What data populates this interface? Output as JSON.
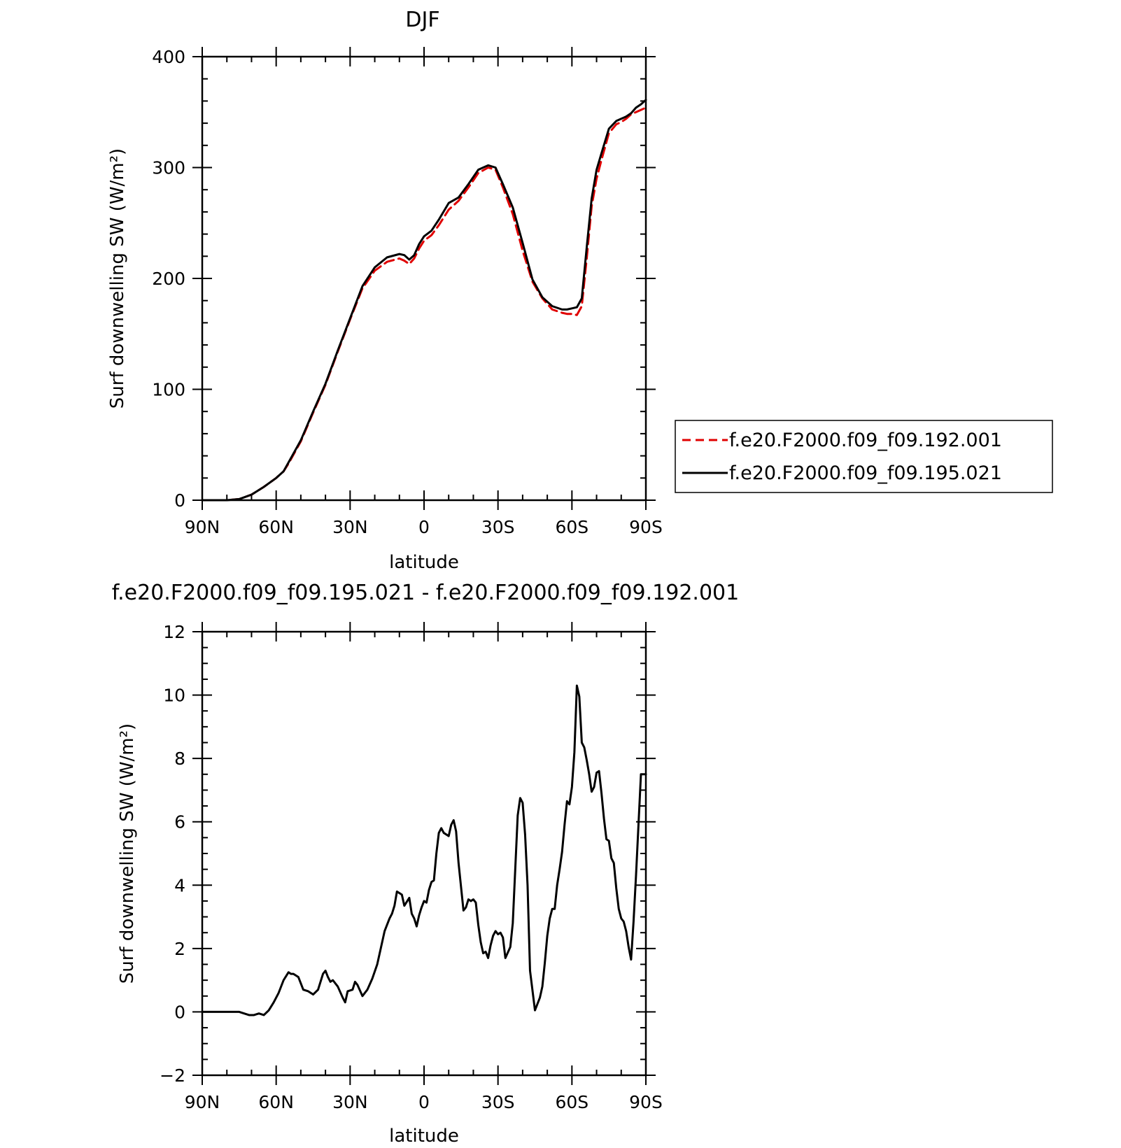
{
  "chart_data": [
    {
      "type": "line",
      "title": "DJF",
      "xlabel": "latitude",
      "ylabel": "Surf downwelling SW (W/m²)",
      "ylim": [
        0,
        400
      ],
      "yticks": [
        0,
        100,
        200,
        300,
        400
      ],
      "xlim": [
        90,
        -90
      ],
      "xticks": [
        {
          "value": 90,
          "label": "90N"
        },
        {
          "value": 60,
          "label": "60N"
        },
        {
          "value": 30,
          "label": "30N"
        },
        {
          "value": 0,
          "label": "0"
        },
        {
          "value": -30,
          "label": "30S"
        },
        {
          "value": -60,
          "label": "60S"
        },
        {
          "value": -90,
          "label": "90S"
        }
      ],
      "grid": false,
      "legend_position": "right",
      "series": [
        {
          "name": "f.e20.F2000.f09_f09.192.001",
          "color": "#e00000",
          "style": "dashed",
          "x": [
            90,
            80,
            75,
            70,
            65,
            60,
            57,
            55,
            50,
            45,
            40,
            35,
            30,
            25,
            20,
            15,
            10,
            8,
            6,
            4,
            2,
            0,
            -3,
            -6,
            -10,
            -14,
            -18,
            -22,
            -26,
            -29,
            -32,
            -36,
            -40,
            -44,
            -48,
            -52,
            -56,
            -58,
            -60,
            -62,
            -64,
            -66,
            -68,
            -70,
            -72,
            -75,
            -78,
            -80,
            -82,
            -84,
            -86,
            -88,
            -90
          ],
          "y": [
            0,
            0,
            1,
            5,
            12,
            20,
            26,
            33,
            53,
            79,
            104,
            134,
            163,
            191,
            207,
            215,
            218,
            216,
            213,
            218,
            227,
            234,
            239,
            248,
            262,
            270,
            282,
            295,
            300,
            298,
            282,
            258,
            225,
            197,
            182,
            172,
            169,
            168,
            168,
            167,
            175,
            218,
            265,
            290,
            307,
            331,
            339,
            341,
            344,
            348,
            350,
            352,
            354
          ]
        },
        {
          "name": "f.e20.F2000.f09_f09.195.021",
          "color": "#000000",
          "style": "solid",
          "x": [
            90,
            80,
            75,
            70,
            65,
            60,
            57,
            55,
            50,
            45,
            40,
            35,
            30,
            25,
            20,
            15,
            10,
            8,
            6,
            4,
            2,
            0,
            -3,
            -6,
            -10,
            -14,
            -18,
            -22,
            -26,
            -29,
            -32,
            -36,
            -40,
            -44,
            -48,
            -52,
            -56,
            -58,
            -60,
            -62,
            -64,
            -66,
            -68,
            -70,
            -72,
            -75,
            -78,
            -80,
            -82,
            -84,
            -86,
            -88,
            -90
          ],
          "y": [
            0,
            0,
            1,
            5,
            12,
            20,
            26,
            34,
            54,
            80,
            105,
            135,
            164,
            193,
            210,
            219,
            222,
            221,
            217,
            221,
            231,
            238,
            243,
            253,
            268,
            273,
            285,
            298,
            302,
            300,
            285,
            264,
            232,
            199,
            183,
            175,
            172,
            172,
            173,
            174,
            182,
            228,
            272,
            298,
            313,
            335,
            342,
            344,
            346,
            349,
            354,
            357,
            361
          ]
        }
      ]
    },
    {
      "type": "line",
      "title": "f.e20.F2000.f09_f09.195.021 - f.e20.F2000.f09_f09.192.001",
      "xlabel": "latitude",
      "ylabel": "Surf downwelling SW (W/m²)",
      "ylim": [
        -2,
        12
      ],
      "yticks": [
        -2,
        0,
        2,
        4,
        6,
        8,
        10,
        12
      ],
      "xlim": [
        90,
        -90
      ],
      "xticks": [
        {
          "value": 90,
          "label": "90N"
        },
        {
          "value": 60,
          "label": "60N"
        },
        {
          "value": 30,
          "label": "30N"
        },
        {
          "value": 0,
          "label": "0"
        },
        {
          "value": -30,
          "label": "30S"
        },
        {
          "value": -60,
          "label": "60S"
        },
        {
          "value": -90,
          "label": "90S"
        }
      ],
      "grid": false,
      "series": [
        {
          "color": "#000000",
          "style": "solid",
          "x": [
            90,
            75,
            73,
            71,
            69,
            67,
            65,
            63,
            61,
            59,
            57,
            55,
            54,
            53,
            51,
            49,
            47,
            45,
            43,
            41,
            40,
            39,
            38,
            37,
            35,
            33,
            32,
            31,
            29,
            28,
            27,
            25,
            23,
            21,
            19,
            17,
            16,
            14,
            13,
            12,
            11,
            10,
            9,
            8,
            6,
            5,
            4,
            3,
            2,
            1,
            0,
            -1,
            -2,
            -3,
            -4,
            -5,
            -6,
            -7,
            -8,
            -10,
            -11,
            -12,
            -13,
            -14,
            -16,
            -17,
            -18,
            -19,
            -20,
            -21,
            -22,
            -23,
            -24,
            -25,
            -26,
            -27,
            -28,
            -29,
            -30,
            -31,
            -32,
            -33,
            -35,
            -36,
            -37,
            -38,
            -39,
            -40,
            -41,
            -42,
            -43,
            -45,
            -46,
            -47,
            -48,
            -49,
            -50,
            -51,
            -52,
            -53,
            -54,
            -55,
            -56,
            -57,
            -58,
            -59,
            -60,
            -61,
            -62,
            -63,
            -64,
            -65,
            -66,
            -67,
            -68,
            -69,
            -70,
            -71,
            -72,
            -73,
            -74,
            -75,
            -76,
            -77,
            -78,
            -79,
            -80,
            -81,
            -82,
            -83,
            -84,
            -85,
            -86,
            -87,
            -88,
            -89,
            -90
          ],
          "y": [
            0,
            0,
            -0.05,
            -0.1,
            -0.1,
            -0.05,
            -0.1,
            0.05,
            0.3,
            0.6,
            1.0,
            1.25,
            1.2,
            1.2,
            1.1,
            0.7,
            0.65,
            0.55,
            0.7,
            1.2,
            1.3,
            1.1,
            0.95,
            1.0,
            0.8,
            0.45,
            0.3,
            0.65,
            0.7,
            0.95,
            0.85,
            0.5,
            0.7,
            1.05,
            1.5,
            2.2,
            2.55,
            2.95,
            3.1,
            3.35,
            3.8,
            3.75,
            3.7,
            3.35,
            3.6,
            3.1,
            2.95,
            2.7,
            3.05,
            3.3,
            3.5,
            3.45,
            3.85,
            4.1,
            4.15,
            5.0,
            5.65,
            5.8,
            5.65,
            5.55,
            5.9,
            6.05,
            5.7,
            4.7,
            3.2,
            3.3,
            3.55,
            3.5,
            3.55,
            3.45,
            2.75,
            2.2,
            1.85,
            1.9,
            1.7,
            2.1,
            2.4,
            2.55,
            2.45,
            2.5,
            2.35,
            1.7,
            2.05,
            2.8,
            4.5,
            6.2,
            6.75,
            6.6,
            5.6,
            4.0,
            1.3,
            0.05,
            0.25,
            0.45,
            0.8,
            1.55,
            2.4,
            2.95,
            3.25,
            3.25,
            4.0,
            4.5,
            5.05,
            5.9,
            6.65,
            6.55,
            7.1,
            8.2,
            10.3,
            9.95,
            8.5,
            8.35,
            7.95,
            7.5,
            6.95,
            7.1,
            7.55,
            7.6,
            6.9,
            6.1,
            5.45,
            5.4,
            4.85,
            4.7,
            3.9,
            3.25,
            2.95,
            2.85,
            2.55,
            2.05,
            1.65,
            2.85,
            4.3,
            5.9,
            7.5,
            7.5,
            7.5
          ]
        }
      ]
    }
  ]
}
